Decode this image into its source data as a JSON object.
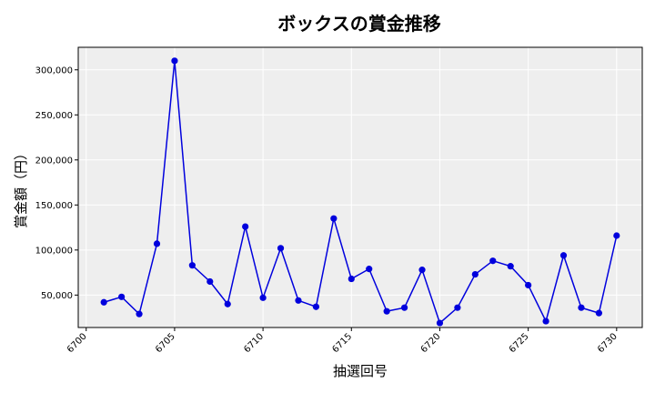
{
  "chart_data": {
    "type": "line",
    "title": "ボックスの賞金推移",
    "xlabel": "抽選回号",
    "ylabel": "賞金額（円）",
    "x": [
      6701,
      6702,
      6703,
      6704,
      6705,
      6706,
      6707,
      6708,
      6709,
      6710,
      6711,
      6712,
      6713,
      6714,
      6715,
      6716,
      6717,
      6718,
      6719,
      6720,
      6721,
      6722,
      6723,
      6724,
      6725,
      6726,
      6727,
      6728,
      6729,
      6730
    ],
    "series": [
      {
        "values": [
          42000,
          48000,
          29000,
          107000,
          310000,
          83000,
          65000,
          40000,
          126000,
          47000,
          102000,
          44000,
          37000,
          135000,
          68000,
          79000,
          32000,
          36000,
          78000,
          19000,
          36000,
          73000,
          88000,
          82000,
          61000,
          21000,
          94000,
          36000,
          30000,
          116000
        ],
        "color": "#0000dd"
      }
    ],
    "xticks": [
      "6700",
      "6705",
      "6710",
      "6715",
      "6720",
      "6725",
      "6730"
    ],
    "yticks": [
      "50,000",
      "100,000",
      "150,000",
      "200,000",
      "250,000",
      "300,000"
    ],
    "xlim": [
      6699.55,
      6731.45
    ],
    "ylim": [
      14000,
      325000
    ],
    "grid": true,
    "background": "#eeeeee"
  }
}
